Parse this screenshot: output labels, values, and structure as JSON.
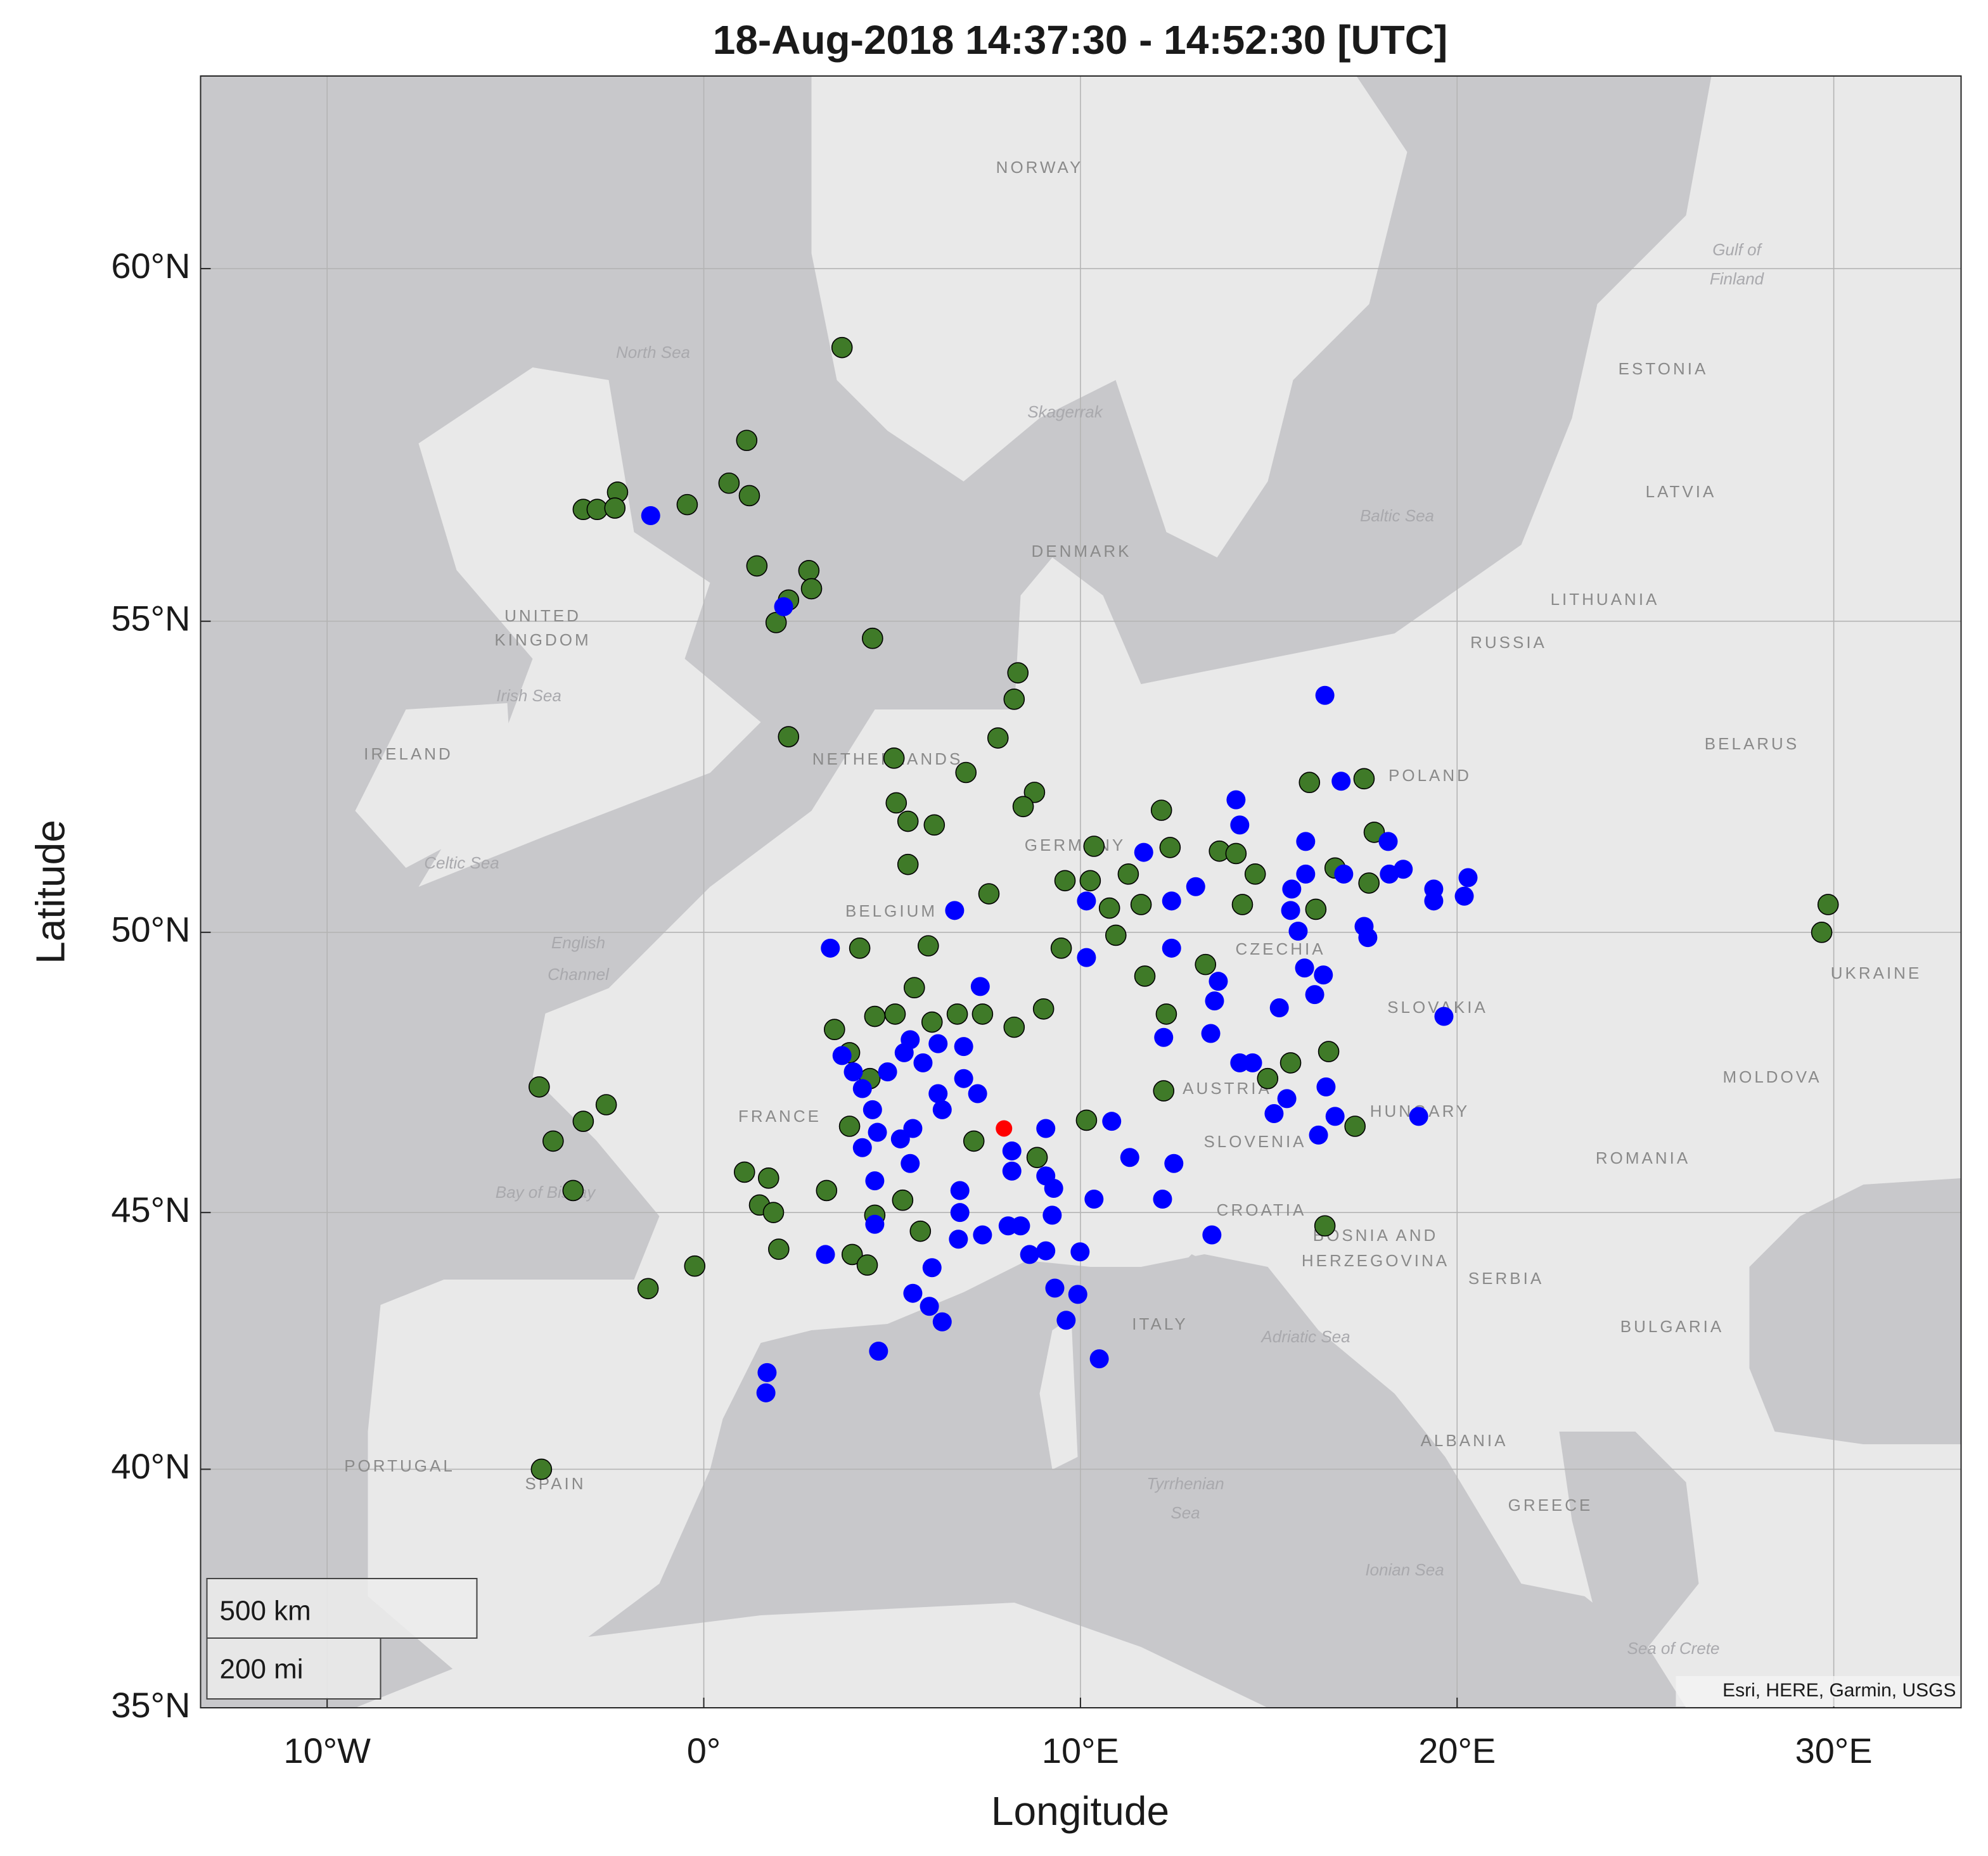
{
  "chart_data": {
    "type": "scatter",
    "title": "18-Aug-2018 14:37:30 - 14:52:30 [UTC]",
    "xlabel": "Longitude",
    "ylabel": "Latitude",
    "projection": "mercator",
    "grid": true,
    "xlim": [
      -13.36,
      33.38
    ],
    "ylim": [
      35,
      62.45
    ],
    "xticks": [
      {
        "value": -10,
        "label": "10°W"
      },
      {
        "value": 0,
        "label": "0°"
      },
      {
        "value": 10,
        "label": "10°E"
      },
      {
        "value": 20,
        "label": "20°E"
      },
      {
        "value": 30,
        "label": "30°E"
      }
    ],
    "yticks": [
      {
        "value": 35,
        "label": "35°N"
      },
      {
        "value": 40,
        "label": "40°N"
      },
      {
        "value": 45,
        "label": "45°N"
      },
      {
        "value": 50,
        "label": "50°N"
      },
      {
        "value": 55,
        "label": "55°N"
      },
      {
        "value": 60,
        "label": "60°N"
      }
    ],
    "series": [
      {
        "color": "#3f7a28",
        "edgecolor": "#000000",
        "marker_size": 8,
        "x": [
          3.67,
          1.14,
          0.67,
          1.21,
          -0.44,
          -2.29,
          -3.2,
          -2.83,
          -2.36,
          1.41,
          2.79,
          2.86,
          2.25,
          1.92,
          4.48,
          8.34,
          8.24,
          2.25,
          7.81,
          5.05,
          6.96,
          5.11,
          5.42,
          6.12,
          8.78,
          8.48,
          5.42,
          7.57,
          12.15,
          10.36,
          12.38,
          13.69,
          14.13,
          16.08,
          17.53,
          17.8,
          17.66,
          16.76,
          16.25,
          14.64,
          14.3,
          11.27,
          11.61,
          10.77,
          10.94,
          10.26,
          9.59,
          29.85,
          29.68,
          4.14,
          5.96,
          9.49,
          11.71,
          13.32,
          5.59,
          3.47,
          4.54,
          5.08,
          6.06,
          6.73,
          7.4,
          8.24,
          9.02,
          12.28,
          16.59,
          15.58,
          14.97,
          17.29,
          12.21,
          10.16,
          3.87,
          7.17,
          8.85,
          1.08,
          1.72,
          3.26,
          1.48,
          1.85,
          5.28,
          4.54,
          5.75,
          1.99,
          3.94,
          4.34,
          -0.24,
          -1.48,
          -4.37,
          -4.0,
          -3.2,
          -2.59,
          -3.47,
          -4.31,
          16.49,
          4.41,
          3.87
        ],
        "values": [
          58.94,
          57.65,
          57.04,
          56.86,
          56.73,
          56.91,
          56.66,
          56.66,
          56.68,
          55.83,
          55.76,
          55.49,
          55.32,
          54.98,
          54.74,
          54.21,
          53.8,
          53.21,
          53.19,
          52.87,
          52.64,
          52.15,
          51.85,
          51.79,
          52.32,
          52.09,
          51.14,
          50.65,
          52.03,
          51.44,
          51.42,
          51.36,
          51.32,
          52.48,
          52.54,
          51.67,
          50.83,
          51.08,
          50.39,
          50.98,
          50.47,
          50.98,
          50.47,
          50.41,
          49.95,
          50.87,
          50.87,
          50.47,
          50.0,
          49.73,
          49.77,
          49.73,
          49.25,
          49.45,
          49.05,
          48.32,
          48.55,
          48.59,
          48.45,
          48.59,
          48.59,
          48.36,
          48.68,
          48.59,
          47.93,
          47.73,
          47.45,
          46.59,
          47.23,
          46.7,
          46.59,
          46.32,
          46.02,
          45.75,
          45.64,
          45.41,
          45.14,
          45.0,
          45.23,
          44.95,
          44.65,
          44.31,
          44.21,
          44.01,
          43.99,
          43.56,
          47.3,
          46.32,
          46.68,
          46.98,
          45.41,
          40.0,
          44.75,
          47.45,
          47.91
        ]
      },
      {
        "color": "#0000ff",
        "marker_size": 7.5,
        "x": [
          -1.41,
          2.12,
          16.49,
          14.13,
          14.23,
          16.92,
          11.68,
          15.98,
          18.17,
          18.57,
          18.2,
          19.38,
          19.38,
          20.29,
          20.19,
          16.99,
          15.98,
          15.61,
          15.58,
          15.78,
          17.53,
          17.63,
          13.06,
          12.42,
          12.42,
          10.16,
          10.16,
          6.66,
          3.36,
          7.34,
          13.66,
          13.56,
          15.95,
          16.45,
          16.22,
          15.28,
          12.21,
          19.65,
          13.46,
          14.23,
          14.57,
          15.48,
          16.52,
          16.76,
          16.32,
          15.14,
          18.98,
          10.83,
          11.31,
          12.48,
          12.18,
          13.49,
          10.36,
          9.29,
          9.08,
          9.08,
          8.18,
          8.18,
          9.32,
          9.99,
          8.65,
          9.08,
          8.41,
          9.25,
          9.93,
          9.62,
          10.5,
          4.64,
          1.68,
          1.65,
          3.23,
          5.55,
          6.06,
          5.99,
          6.33,
          6.8,
          6.8,
          6.76,
          7.4,
          8.08,
          3.67,
          3.97,
          4.21,
          4.48,
          4.61,
          4.54,
          4.54,
          4.88,
          5.32,
          5.48,
          5.82,
          6.22,
          6.22,
          6.33,
          5.55,
          5.48,
          6.9,
          6.9,
          7.27,
          5.22,
          4.21
        ],
        "values": [
          56.57,
          55.22,
          53.86,
          52.2,
          51.79,
          52.5,
          51.34,
          51.52,
          51.52,
          51.06,
          50.98,
          50.73,
          50.53,
          50.92,
          50.61,
          50.98,
          50.98,
          50.73,
          50.37,
          50.02,
          50.1,
          49.91,
          50.77,
          50.53,
          49.73,
          50.53,
          49.57,
          50.37,
          49.73,
          49.07,
          49.16,
          48.82,
          49.39,
          49.27,
          48.93,
          48.7,
          48.18,
          48.55,
          48.25,
          47.73,
          47.73,
          47.09,
          47.3,
          46.77,
          46.43,
          46.82,
          46.77,
          46.68,
          46.02,
          45.91,
          45.25,
          44.58,
          45.25,
          45.45,
          45.68,
          46.55,
          46.14,
          45.77,
          43.57,
          44.26,
          44.21,
          44.28,
          44.75,
          44.95,
          43.45,
          42.95,
          42.2,
          42.35,
          41.93,
          41.53,
          44.21,
          43.47,
          43.96,
          43.22,
          42.92,
          45.41,
          45.0,
          44.5,
          44.58,
          44.75,
          47.86,
          47.57,
          47.27,
          46.89,
          46.48,
          45.59,
          44.78,
          47.57,
          47.91,
          48.14,
          47.73,
          48.07,
          47.18,
          46.89,
          46.55,
          45.91,
          48.02,
          47.45,
          47.18,
          46.36,
          46.2
        ]
      },
      {
        "color": "#ff0000",
        "marker_size": 6.5,
        "x": [
          7.97
        ],
        "values": [
          46.55
        ]
      }
    ],
    "map_labels": [
      "NORWAY",
      "North Sea",
      "Skagerrak",
      "DENMARK",
      "Baltic Sea",
      "ESTONIA",
      "Gulf of",
      "Finland",
      "LATVIA",
      "LITHUANIA",
      "RUSSIA",
      "BELARUS",
      "UNITED",
      "KINGDOM",
      "Irish Sea",
      "IRELAND",
      "Celtic Sea",
      "English",
      "Channel",
      "NETHERLANDS",
      "BELGIUM",
      "GERMANY",
      "POLAND",
      "CZECHIA",
      "SLOVAKIA",
      "UKRAINE",
      "MOLDOVA",
      "AUSTRIA",
      "HUNGARY",
      "FRANCE",
      "SLOVENIA",
      "CROATIA",
      "ROMANIA",
      "Bay of Biscay",
      "BOSNIA AND",
      "HERZEGOVINA",
      "SERBIA",
      "BULGARIA",
      "ITALY",
      "Adriatic Sea",
      "ALBANIA",
      "PORTUGAL",
      "SPAIN",
      "Tyrrhenian",
      "Sea",
      "GREECE",
      "Ionian Sea",
      "Sea of Crete"
    ],
    "scale_bar": [
      "500 km",
      "200 mi"
    ],
    "attribution": "Esri, HERE, Garmin, USGS"
  }
}
